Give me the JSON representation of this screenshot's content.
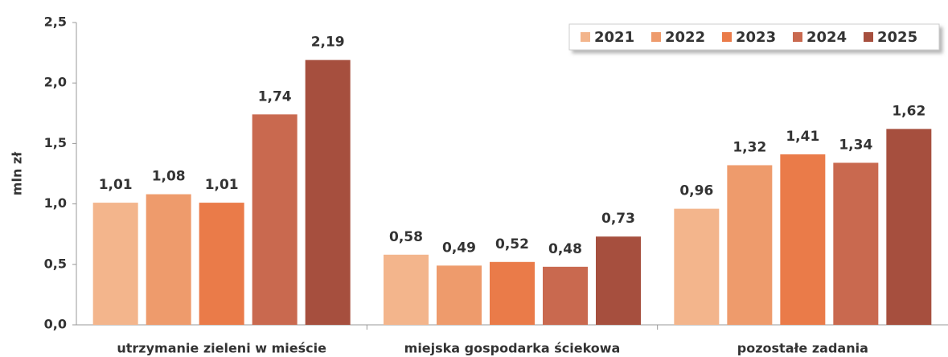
{
  "chart_data": {
    "type": "bar",
    "y_label": "mln zł",
    "categories": [
      "utrzymanie zieleni w mieście",
      "miejska gospodarka ściekowa",
      "pozostałe zadania"
    ],
    "series": [
      {
        "name": "2021",
        "color": "#f3b58c",
        "values": [
          1.01,
          0.58,
          0.96
        ],
        "value_labels": [
          "1,01",
          "0,58",
          "0,96"
        ]
      },
      {
        "name": "2022",
        "color": "#ee9b6c",
        "values": [
          1.08,
          0.49,
          1.32
        ],
        "value_labels": [
          "1,08",
          "0,49",
          "1,32"
        ]
      },
      {
        "name": "2023",
        "color": "#ea7b49",
        "values": [
          1.01,
          0.52,
          1.41
        ],
        "value_labels": [
          "1,01",
          "0,52",
          "1,41"
        ]
      },
      {
        "name": "2024",
        "color": "#c9694f",
        "values": [
          1.74,
          0.48,
          1.34
        ],
        "value_labels": [
          "1,74",
          "0,48",
          "1,34"
        ]
      },
      {
        "name": "2025",
        "color": "#a64f3e",
        "values": [
          2.19,
          0.73,
          1.62
        ],
        "value_labels": [
          "2,19",
          "0,73",
          "1,62"
        ]
      }
    ],
    "ylim": [
      0,
      2.5
    ],
    "yticks": [
      {
        "value": 0,
        "label": "0,0"
      },
      {
        "value": 0.5,
        "label": "0,5"
      },
      {
        "value": 1,
        "label": "1,0"
      },
      {
        "value": 1.5,
        "label": "1,5"
      },
      {
        "value": 2,
        "label": "2,0"
      },
      {
        "value": 2.5,
        "label": "2,5"
      }
    ],
    "grid": false,
    "legend": "upper right"
  }
}
